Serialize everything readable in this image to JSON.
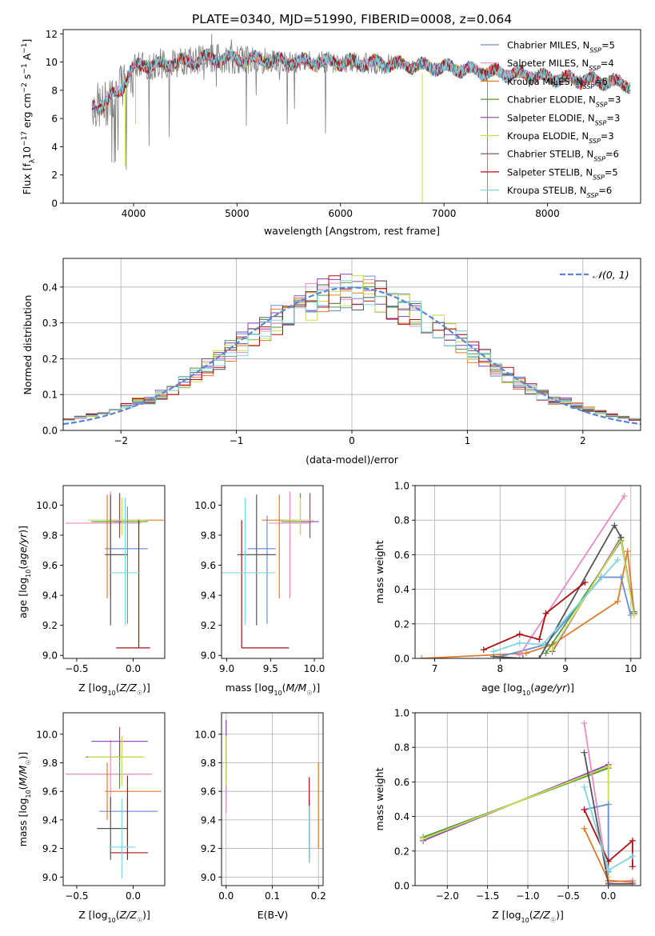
{
  "figure": {
    "title": "PLATE=0340, MJD=51990, FIBERID=0008, z=0.064"
  },
  "colors": {
    "Chabrier MILES": "#6a8fd8",
    "Salpeter MILES": "#e98ac0",
    "Kroupa MILES": "#e07b28",
    "Chabrier ELODIE": "#4c9a3c",
    "Salpeter ELODIE": "#8e3fb8",
    "Kroupa ELODIE": "#c9dd4b",
    "Chabrier STELIB": "#555555",
    "Salpeter STELIB": "#aa1111",
    "Kroupa STELIB": "#7fd6e0",
    "data": "#808080"
  },
  "chart_data": [
    {
      "id": "spectrum",
      "type": "line",
      "xlabel": "wavelength [Angstrom, rest frame]",
      "ylabel": "Flux [f",
      "ylabel_parts": {
        "main": "Flux [f",
        "sub1": "λ",
        "mid": "10",
        "sup1": "−17",
        "after": " erg cm",
        "sup2": "−2",
        "mid2": " s",
        "sup3": "−1",
        "end": " A",
        "sup4": "−1",
        "close": "]"
      },
      "xlim": [
        3320,
        8900
      ],
      "ylim": [
        0,
        12.3
      ],
      "xticks": [
        4000,
        5000,
        6000,
        7000,
        8000
      ],
      "yticks": [
        0,
        2,
        4,
        6,
        8,
        10,
        12
      ],
      "legend_placement": "right",
      "legend": [
        {
          "name": "Chabrier MILES",
          "nssp": "5"
        },
        {
          "name": "Salpeter MILES",
          "nssp": "4"
        },
        {
          "name": "Kroupa MILES",
          "nssp": "5"
        },
        {
          "name": "Chabrier ELODIE",
          "nssp": "3"
        },
        {
          "name": "Salpeter ELODIE",
          "nssp": "3"
        },
        {
          "name": "Kroupa ELODIE",
          "nssp": "3"
        },
        {
          "name": "Chabrier STELIB",
          "nssp": "6"
        },
        {
          "name": "Salpeter STELIB",
          "nssp": "5"
        },
        {
          "name": "Kroupa STELIB",
          "nssp": "6"
        }
      ],
      "continuum": {
        "x": [
          3600,
          3700,
          3800,
          3900,
          4000,
          4100,
          4200,
          4300,
          4500,
          4700,
          5000,
          5300,
          5600,
          6000,
          6400,
          6800,
          7000,
          7200,
          7400,
          7600,
          7800,
          8000,
          8200,
          8400,
          8600,
          8800
        ],
        "y": [
          7.0,
          6.8,
          7.6,
          8.4,
          9.6,
          9.9,
          9.7,
          9.9,
          10.0,
          10.3,
          10.2,
          10.1,
          10.0,
          10.0,
          9.9,
          9.7,
          9.6,
          9.5,
          9.3,
          9.2,
          9.1,
          8.9,
          8.8,
          8.7,
          8.6,
          8.4
        ]
      },
      "dips": [
        {
          "x": 3920,
          "y": 2.6
        },
        {
          "x": 4020,
          "y": 5.6
        },
        {
          "x": 6790,
          "y": 0.0
        },
        {
          "x": 7420,
          "y": 0.0
        }
      ]
    },
    {
      "id": "residuals",
      "type": "line",
      "xlabel": "(data-model)/error",
      "ylabel": "Normed distribution",
      "xlim": [
        -2.5,
        2.5
      ],
      "ylim": [
        0,
        0.48
      ],
      "xticks": [
        -2,
        -1,
        0,
        1,
        2
      ],
      "yticks": [
        0.0,
        0.1,
        0.2,
        0.3,
        0.4
      ],
      "grid": true,
      "legend_placement": "top-right",
      "normal_label": "𝒩(0, 1)",
      "bin_width": 0.1,
      "bin_start": -2.5
    },
    {
      "id": "age-vs-Z",
      "type": "scatter",
      "xlabel": "Z [log10(Z/Z☉)]",
      "ylabel": "age  [log10(age/yr)]",
      "xlim": [
        -0.62,
        0.28
      ],
      "ylim": [
        8.98,
        10.13
      ],
      "xticks": [
        -0.5,
        0.0
      ],
      "yticks": [
        9.0,
        9.2,
        9.4,
        9.6,
        9.8,
        10.0
      ],
      "points": [
        {
          "model": "Chabrier MILES",
          "x": -0.05,
          "xerr": [
            0.2,
            0.18
          ],
          "y": 9.71,
          "yerr": [
            0.5,
            0.28
          ]
        },
        {
          "model": "Salpeter MILES",
          "x": -0.2,
          "xerr": [
            0.4,
            0.27
          ],
          "y": 9.88,
          "yerr": [
            0.5,
            0.21
          ]
        },
        {
          "model": "Kroupa MILES",
          "x": -0.23,
          "xerr": [
            0.02,
            0.5
          ],
          "y": 9.9,
          "yerr": [
            0.52,
            0.17
          ]
        },
        {
          "model": "Chabrier ELODIE",
          "x": -0.12,
          "xerr": [
            0.25,
            0.25
          ],
          "y": 9.89,
          "yerr": [
            0.08,
            0.19
          ]
        },
        {
          "model": "Salpeter ELODIE",
          "x": -0.12,
          "xerr": [
            0.05,
            0.02
          ],
          "y": 9.89,
          "yerr": [
            0.11,
            0.19
          ]
        },
        {
          "model": "Kroupa ELODIE",
          "x": -0.1,
          "xerr": [
            0.3,
            0.22
          ],
          "y": 9.9,
          "yerr": [
            0.1,
            0.15
          ]
        },
        {
          "model": "Chabrier STELIB",
          "x": -0.2,
          "xerr": [
            0.05,
            0.15
          ],
          "y": 9.67,
          "yerr": [
            0.47,
            0.4
          ]
        },
        {
          "model": "Salpeter STELIB",
          "x": 0.05,
          "xerr": [
            0.2,
            0.1
          ],
          "y": 9.05,
          "yerr": [
            0.0,
            0.85
          ]
        },
        {
          "model": "Kroupa STELIB",
          "x": -0.07,
          "xerr": [
            0.13,
            0.13
          ],
          "y": 9.55,
          "yerr": [
            0.35,
            0.5
          ]
        }
      ]
    },
    {
      "id": "age-vs-mass",
      "type": "scatter",
      "xlabel": "mass [log10(M/M☉)]",
      "xlim": [
        8.94,
        10.1
      ],
      "ylim": [
        8.98,
        10.13
      ],
      "xticks": [
        9.0,
        9.5,
        10.0
      ],
      "yticks": [
        9.0,
        9.2,
        9.4,
        9.6,
        9.8,
        10.0
      ],
      "points": [
        {
          "model": "Chabrier MILES",
          "x": 9.46,
          "xerr": [
            0.22,
            0.1
          ],
          "y": 9.71,
          "yerr": [
            0.5,
            0.22
          ]
        },
        {
          "model": "Salpeter MILES",
          "x": 9.72,
          "xerr": [
            0.24,
            0.24
          ],
          "y": 9.88,
          "yerr": [
            0.5,
            0.21
          ]
        },
        {
          "model": "Kroupa MILES",
          "x": 9.6,
          "xerr": [
            0.2,
            0.2
          ],
          "y": 9.9,
          "yerr": [
            0.52,
            0.17
          ]
        },
        {
          "model": "Chabrier ELODIE",
          "x": 9.84,
          "xerr": [
            0.22,
            0.1
          ],
          "y": 9.89,
          "yerr": [
            0.08,
            0.19
          ]
        },
        {
          "model": "Salpeter ELODIE",
          "x": 9.95,
          "xerr": [
            0.12,
            0.1
          ],
          "y": 9.89,
          "yerr": [
            0.11,
            0.19
          ]
        },
        {
          "model": "Kroupa ELODIE",
          "x": 9.84,
          "xerr": [
            0.2,
            0.15
          ],
          "y": 9.9,
          "yerr": [
            0.1,
            0.15
          ]
        },
        {
          "model": "Chabrier STELIB",
          "x": 9.34,
          "xerr": [
            0.22,
            0.22
          ],
          "y": 9.67,
          "yerr": [
            0.47,
            0.4
          ]
        },
        {
          "model": "Salpeter STELIB",
          "x": 9.17,
          "xerr": [
            0.0,
            0.54
          ],
          "y": 9.05,
          "yerr": [
            0.0,
            0.85
          ]
        },
        {
          "model": "Kroupa STELIB",
          "x": 9.21,
          "xerr": [
            0.28,
            0.34
          ],
          "y": 9.55,
          "yerr": [
            0.35,
            0.5
          ]
        }
      ]
    },
    {
      "id": "weight-vs-age",
      "type": "line",
      "xlabel": "age  [log10(age/yr)]",
      "ylabel": "mass weight",
      "xlim": [
        6.7,
        10.15
      ],
      "ylim": [
        0,
        1.0
      ],
      "xticks": [
        7,
        8,
        9,
        10
      ],
      "yticks": [
        0.0,
        0.2,
        0.4,
        0.6,
        0.8,
        1.0
      ],
      "grid": true,
      "series": [
        {
          "model": "Kroupa MILES",
          "x": [
            6.8,
            8.4,
            8.8,
            9.8,
            9.95,
            10.05
          ],
          "y": [
            0.0,
            0.03,
            0.08,
            0.33,
            0.62,
            0.27
          ]
        },
        {
          "model": "Chabrier MILES",
          "x": [
            8.0,
            8.7,
            9.55,
            9.85,
            10.0
          ],
          "y": [
            0.01,
            0.08,
            0.47,
            0.47,
            0.25
          ]
        },
        {
          "model": "Salpeter MILES",
          "x": [
            8.3,
            9.9
          ],
          "y": [
            0.02,
            0.94
          ]
        },
        {
          "model": "Chabrier ELODIE",
          "x": [
            8.7,
            9.85,
            10.05
          ],
          "y": [
            0.03,
            0.68,
            0.27
          ]
        },
        {
          "model": "Salpeter ELODIE",
          "x": [
            8.8,
            9.85,
            10.05
          ],
          "y": [
            0.04,
            0.7,
            0.26
          ]
        },
        {
          "model": "Kroupa ELODIE",
          "x": [
            8.8,
            9.85,
            10.05
          ],
          "y": [
            0.05,
            0.69,
            0.25
          ]
        },
        {
          "model": "Chabrier STELIB",
          "x": [
            7.9,
            8.35,
            8.6,
            9.75,
            9.85
          ],
          "y": [
            0.01,
            0.0,
            0.0,
            0.77,
            0.7
          ]
        },
        {
          "model": "Salpeter STELIB",
          "x": [
            7.75,
            8.3,
            8.6,
            8.7,
            9.3
          ],
          "y": [
            0.05,
            0.14,
            0.11,
            0.26,
            0.44
          ]
        },
        {
          "model": "Kroupa STELIB",
          "x": [
            7.9,
            8.3,
            8.65,
            9.8
          ],
          "y": [
            0.04,
            0.09,
            0.08,
            0.57
          ]
        }
      ]
    },
    {
      "id": "mass-vs-Z",
      "type": "scatter",
      "xlabel": "Z [log10(Z/Z☉)]",
      "ylabel": "mass [log10(M/M☉)]",
      "xlim": [
        -0.62,
        0.28
      ],
      "ylim": [
        8.94,
        10.15
      ],
      "xticks": [
        -0.5,
        0.0
      ],
      "yticks": [
        9.0,
        9.2,
        9.4,
        9.6,
        9.8,
        10.0
      ],
      "points": [
        {
          "model": "Chabrier MILES",
          "x": -0.05,
          "xerr": [
            0.25,
            0.27
          ],
          "y": 9.46,
          "yerr": [
            0.22,
            0.1
          ]
        },
        {
          "model": "Salpeter MILES",
          "x": -0.2,
          "xerr": [
            0.4,
            0.37
          ],
          "y": 9.72,
          "yerr": [
            0.24,
            0.24
          ]
        },
        {
          "model": "Kroupa MILES",
          "x": -0.23,
          "xerr": [
            0.02,
            0.48
          ],
          "y": 9.6,
          "yerr": [
            0.2,
            0.2
          ]
        },
        {
          "model": "Chabrier ELODIE",
          "x": -0.12,
          "xerr": [
            0.3,
            0.2
          ],
          "y": 9.84,
          "yerr": [
            0.22,
            0.1
          ]
        },
        {
          "model": "Salpeter ELODIE",
          "x": -0.12,
          "xerr": [
            0.25,
            0.25
          ],
          "y": 9.95,
          "yerr": [
            0.12,
            0.1
          ]
        },
        {
          "model": "Kroupa ELODIE",
          "x": -0.1,
          "xerr": [
            0.3,
            0.2
          ],
          "y": 9.84,
          "yerr": [
            0.2,
            0.15
          ]
        },
        {
          "model": "Chabrier STELIB",
          "x": -0.2,
          "xerr": [
            0.12,
            0.15
          ],
          "y": 9.34,
          "yerr": [
            0.22,
            0.22
          ]
        },
        {
          "model": "Salpeter STELIB",
          "x": -0.05,
          "xerr": [
            0.15,
            0.18
          ],
          "y": 9.17,
          "yerr": [
            0.05,
            0.54
          ]
        },
        {
          "model": "Kroupa STELIB",
          "x": -0.1,
          "xerr": [
            0.12,
            0.12
          ],
          "y": 9.21,
          "yerr": [
            0.22,
            0.34
          ]
        }
      ]
    },
    {
      "id": "mass-vs-EBV",
      "type": "scatter",
      "xlabel": "E(B-V)",
      "xlim": [
        -0.01,
        0.21
      ],
      "ylim": [
        8.94,
        10.15
      ],
      "xticks": [
        0.0,
        0.1,
        0.2
      ],
      "yticks": [
        9.0,
        9.2,
        9.4,
        9.6,
        9.8,
        10.0
      ],
      "grid": true,
      "points": [
        {
          "model": "Chabrier MILES",
          "x": 0.0,
          "y": 9.55,
          "yerr": [
            0.05,
            0.25
          ]
        },
        {
          "model": "Salpeter MILES",
          "x": 0.0,
          "y": 9.6,
          "yerr": [
            0.15,
            0.3
          ]
        },
        {
          "model": "Kroupa MILES",
          "x": 0.2,
          "y": 9.45,
          "yerr": [
            0.25,
            0.35
          ]
        },
        {
          "model": "Chabrier ELODIE",
          "x": 0.0,
          "y": 9.84,
          "yerr": [
            0.15,
            0.15
          ]
        },
        {
          "model": "Salpeter ELODIE",
          "x": 0.0,
          "y": 9.95,
          "yerr": [
            0.15,
            0.15
          ]
        },
        {
          "model": "Kroupa ELODIE",
          "x": 0.0,
          "y": 9.84,
          "yerr": [
            0.2,
            0.15
          ]
        },
        {
          "model": "Chabrier STELIB",
          "x": 0.18,
          "y": 9.34,
          "yerr": [
            0.2,
            0.2
          ]
        },
        {
          "model": "Salpeter STELIB",
          "x": 0.18,
          "y": 9.35,
          "yerr": [
            0.25,
            0.35
          ]
        },
        {
          "model": "Kroupa STELIB",
          "x": 0.18,
          "y": 9.3,
          "yerr": [
            0.2,
            0.2
          ]
        }
      ]
    },
    {
      "id": "weight-vs-Z",
      "type": "line",
      "xlabel": "Z [log10(Z/Z☉)]",
      "ylabel": "mass weight",
      "xlim": [
        -2.4,
        0.4
      ],
      "ylim": [
        0,
        1.0
      ],
      "xticks": [
        -2.0,
        -1.5,
        -1.0,
        -0.5,
        0.0
      ],
      "yticks": [
        0.0,
        0.2,
        0.4,
        0.6,
        0.8,
        1.0
      ],
      "grid": true,
      "series": [
        {
          "model": "Chabrier ELODIE",
          "x": [
            -2.3,
            0.0
          ],
          "y": [
            0.28,
            0.68
          ]
        },
        {
          "model": "Salpeter ELODIE",
          "x": [
            -2.3,
            0.0
          ],
          "y": [
            0.26,
            0.7
          ]
        },
        {
          "model": "Kroupa ELODIE",
          "x": [
            -2.3,
            0.0,
            0.0
          ],
          "y": [
            0.27,
            0.69,
            0.05
          ]
        },
        {
          "model": "Salpeter MILES",
          "x": [
            -0.3,
            0.0,
            0.3
          ],
          "y": [
            0.94,
            0.02,
            0.03
          ]
        },
        {
          "model": "Kroupa MILES",
          "x": [
            -0.3,
            0.0,
            0.3
          ],
          "y": [
            0.33,
            0.03,
            0.02
          ]
        },
        {
          "model": "Chabrier MILES",
          "x": [
            -0.3,
            0.0,
            0.0
          ],
          "y": [
            0.44,
            0.47,
            0.08
          ]
        },
        {
          "model": "Chabrier STELIB",
          "x": [
            -0.3,
            0.0,
            0.3
          ],
          "y": [
            0.77,
            0.01,
            0.01
          ]
        },
        {
          "model": "Salpeter STELIB",
          "x": [
            -0.3,
            0.0,
            0.3,
            0.3
          ],
          "y": [
            0.44,
            0.14,
            0.26,
            0.11
          ]
        },
        {
          "model": "Kroupa STELIB",
          "x": [
            -0.3,
            0.0,
            0.3
          ],
          "y": [
            0.57,
            0.09,
            0.17
          ]
        }
      ]
    }
  ]
}
